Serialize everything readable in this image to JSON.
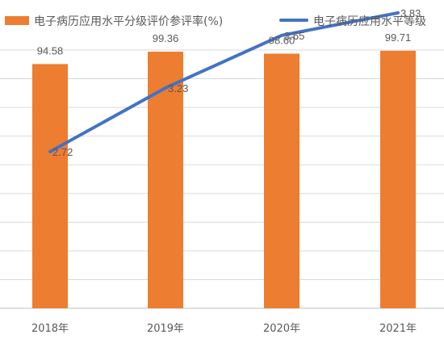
{
  "chart_data": {
    "type": "bar",
    "categories": [
      "2018年",
      "2019年",
      "2020年",
      "2021年"
    ],
    "series": [
      {
        "name": "电子病历应用水平分级评价参评率(%)",
        "kind": "bar",
        "color": "#ED7D31",
        "values": [
          94.58,
          99.36,
          98.6,
          99.71
        ],
        "labels": [
          "94.58",
          "99.36",
          "98.60",
          "99.71"
        ]
      },
      {
        "name": "电子病历应用水平等级",
        "kind": "line",
        "color": "#4472C4",
        "values": [
          2.72,
          3.23,
          3.65,
          3.83
        ],
        "labels": [
          "2.72",
          "3.23",
          "3.65",
          "3.83"
        ]
      }
    ],
    "grid": true,
    "legend": "top"
  }
}
